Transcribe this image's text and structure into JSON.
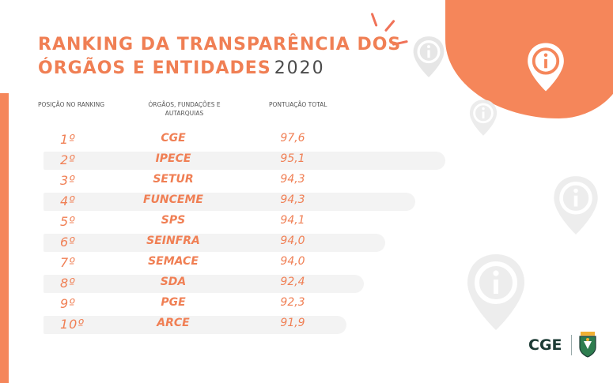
{
  "title": {
    "line1": "RANKING DA TRANSPARÊNCIA DOS",
    "line2": "ÓRGÃOS E ENTIDADES",
    "year": "2020"
  },
  "table": {
    "headers": {
      "position": "POSIÇÃO NO RANKING",
      "organization": "ÓRGÃOS, FUNDAÇÕES E AUTARQUIAS",
      "score": "PONTUAÇÃO TOTAL"
    },
    "rows": [
      {
        "rank": "1º",
        "org": "CGE",
        "score": "97,6"
      },
      {
        "rank": "2º",
        "org": "IPECE",
        "score": "95,1"
      },
      {
        "rank": "3º",
        "org": "SETUR",
        "score": "94,3"
      },
      {
        "rank": "4º",
        "org": "FUNCEME",
        "score": "94,3"
      },
      {
        "rank": "5º",
        "org": "SPS",
        "score": "94,1"
      },
      {
        "rank": "6º",
        "org": "SEINFRA",
        "score": "94,0"
      },
      {
        "rank": "7º",
        "org": "SEMACE",
        "score": "94,0"
      },
      {
        "rank": "8º",
        "org": "SDA",
        "score": "92,4"
      },
      {
        "rank": "9º",
        "org": "PGE",
        "score": "92,3"
      },
      {
        "rank": "10º",
        "org": "ARCE",
        "score": "91,9"
      }
    ]
  },
  "logo": {
    "text": "CGE"
  },
  "colors": {
    "accent": "#f5865a",
    "text_dark": "#4a4a4a",
    "row_band": "#f3f3f3",
    "logo": "#1d3b35"
  },
  "icons": [
    "info-pin-icon",
    "coat-of-arms-icon"
  ]
}
